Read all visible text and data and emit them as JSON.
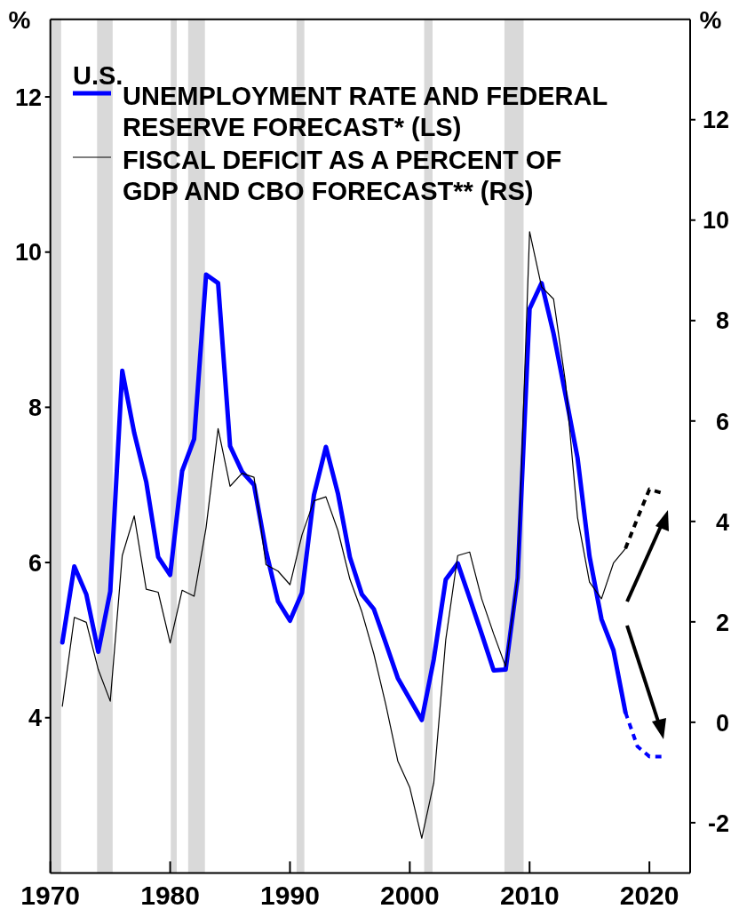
{
  "chart_data": {
    "type": "line",
    "title": "U.S.",
    "ylabel": "%",
    "y2label": "%",
    "xlim": [
      1970,
      2023.4
    ],
    "xticks": [
      1970,
      1980,
      1990,
      2000,
      2010,
      2020
    ],
    "ylim": [
      2,
      13
    ],
    "yticks": [
      4,
      6,
      8,
      10,
      12
    ],
    "y2lim": [
      -3,
      14
    ],
    "y2ticks": [
      -2,
      0,
      2,
      4,
      6,
      8,
      10,
      12
    ],
    "grid": false,
    "legend": "top left",
    "bands": [
      {
        "axis": "x",
        "from": 1970,
        "to": 1970.9,
        "color": "#d9d9d9"
      },
      {
        "axis": "x",
        "from": 1973.9,
        "to": 1975.2,
        "color": "#d9d9d9"
      },
      {
        "axis": "x",
        "from": 1980.05,
        "to": 1980.55,
        "color": "#d9d9d9"
      },
      {
        "axis": "x",
        "from": 1981.5,
        "to": 1982.9,
        "color": "#d9d9d9"
      },
      {
        "axis": "x",
        "from": 1990.55,
        "to": 1991.2,
        "color": "#d9d9d9"
      },
      {
        "axis": "x",
        "from": 2001.2,
        "to": 2001.9,
        "color": "#d9d9d9"
      },
      {
        "axis": "x",
        "from": 2007.9,
        "to": 2009.5,
        "color": "#d9d9d9"
      }
    ],
    "series": [
      {
        "name": "UNEMPLOYMENT RATE AND FEDERAL RESERVE FORECAST* (LS)",
        "color": "#0000ff",
        "line_style": "solid",
        "x": [
          1971,
          1972,
          1973,
          1974,
          1975,
          1976,
          1977,
          1978,
          1979,
          1980,
          1981,
          1982,
          1983,
          1984,
          1985,
          1986,
          1987,
          1988,
          1989,
          1990,
          1991,
          1992,
          1993,
          1994,
          1995,
          1996,
          1997,
          1998,
          1999,
          2000,
          2001,
          2002,
          2003,
          2004,
          2005,
          2006,
          2007,
          2008,
          2009,
          2010,
          2011,
          2012,
          2013,
          2014,
          2015,
          2016,
          2017,
          2018
        ],
        "values": [
          4.97,
          5.95,
          5.59,
          4.85,
          5.63,
          8.47,
          7.67,
          7.04,
          6.07,
          5.84,
          7.18,
          7.59,
          9.71,
          9.6,
          7.5,
          7.17,
          7.0,
          6.15,
          5.5,
          5.25,
          5.61,
          6.87,
          7.49,
          6.89,
          6.07,
          5.59,
          5.4,
          4.96,
          4.51,
          4.24,
          3.97,
          4.75,
          5.78,
          5.99,
          5.54,
          5.08,
          4.61,
          4.62,
          5.8,
          9.27,
          9.6,
          8.95,
          8.16,
          7.35,
          6.08,
          5.27,
          4.87,
          4.07
        ]
      },
      {
        "color": "#0000ff",
        "line_style": "dotted",
        "x": [
          2018,
          2019,
          2020,
          2021
        ],
        "values": [
          4.07,
          3.63,
          3.5,
          3.5
        ]
      },
      {
        "name": "FISCAL DEFICIT AS A PERCENT OF GDP AND CBO FORECAST** (RS)",
        "color": "#000000",
        "axis": "y2",
        "line_style": "solid",
        "x": [
          1971,
          1972,
          1973,
          1974,
          1975,
          1976,
          1977,
          1978,
          1979,
          1980,
          1981,
          1982,
          1983,
          1984,
          1985,
          1986,
          1987,
          1988,
          1989,
          1990,
          1991,
          1992,
          1993,
          1994,
          1995,
          1996,
          1997,
          1998,
          1999,
          2000,
          2001,
          2002,
          2003,
          2004,
          2005,
          2006,
          2007,
          2008,
          2009,
          2010,
          2011,
          2012,
          2013,
          2014,
          2015,
          2016,
          2017,
          2018
        ],
        "values": [
          0.32,
          2.09,
          1.99,
          1.05,
          0.42,
          3.32,
          4.11,
          2.65,
          2.59,
          1.58,
          2.63,
          2.51,
          3.88,
          5.85,
          4.7,
          4.96,
          4.88,
          3.14,
          3.01,
          2.74,
          3.73,
          4.41,
          4.49,
          3.82,
          2.85,
          2.2,
          1.36,
          0.35,
          -0.77,
          -1.3,
          -2.31,
          -1.21,
          1.64,
          3.32,
          3.39,
          2.46,
          1.76,
          1.11,
          2.88,
          9.77,
          8.67,
          8.43,
          6.76,
          4.08,
          2.79,
          2.46,
          3.17,
          3.46
        ]
      },
      {
        "color": "#000000",
        "axis": "y2",
        "line_style": "dotted",
        "x": [
          2018,
          2019,
          2020,
          2021
        ],
        "values": [
          3.46,
          4.06,
          4.64,
          4.57
        ]
      }
    ]
  }
}
